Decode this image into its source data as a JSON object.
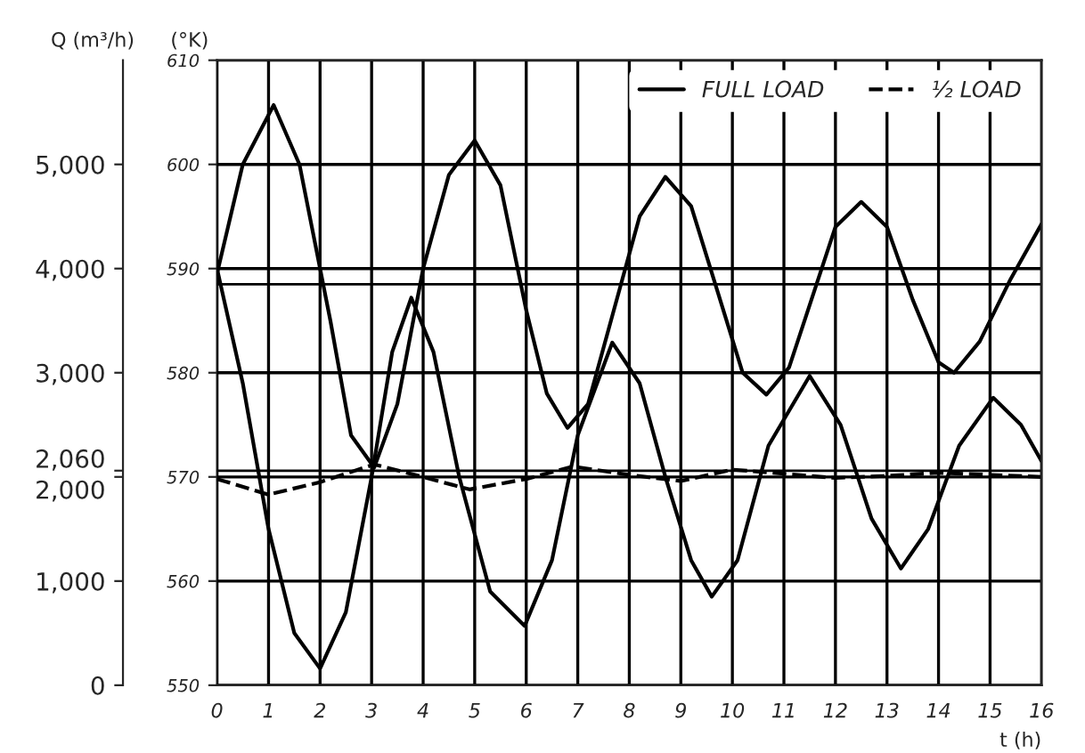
{
  "chart_data": {
    "type": "line",
    "xlabel": "t (h)",
    "ylabel": "Q (m³/h)",
    "y2label": "(°K)",
    "xlim": [
      0,
      16
    ],
    "xticks": [
      0,
      1,
      2,
      3,
      4,
      5,
      6,
      7,
      8,
      9,
      10,
      11,
      12,
      13,
      14,
      15,
      16
    ],
    "ylim": [
      0,
      6000
    ],
    "yticks": [
      0,
      {
        "value": 1000,
        "label": "1,000"
      },
      {
        "value": 2000,
        "label": "2,000"
      },
      {
        "value": 2060,
        "label": "2,060"
      },
      {
        "value": 3000,
        "label": "3,000"
      },
      {
        "value": 4000,
        "label": "4,000"
      },
      {
        "value": 5000,
        "label": "5,000"
      }
    ],
    "y2lim": [
      550,
      610
    ],
    "y2ticks": [
      550,
      560,
      570,
      580,
      590,
      600,
      610
    ],
    "grid": true,
    "legend": "top right",
    "ref_lines": [
      {
        "axis": "y",
        "value": 2060,
        "color": "#000000",
        "line_style": "solid"
      },
      {
        "axis": "y",
        "value": 3850,
        "color": "#000000",
        "line_style": "solid"
      }
    ],
    "series": [
      {
        "name": "FULL LOAD",
        "color": "#000000",
        "line_style": "solid",
        "x": [
          0,
          0.5,
          1.1,
          1.6,
          2.2,
          2.6,
          3.05,
          3.5,
          4,
          4.5,
          5.0,
          5.5,
          6.0,
          6.4,
          6.8,
          7.2,
          7.7,
          8.2,
          8.7,
          9.2,
          9.7,
          10.2,
          10.66,
          11.1,
          11.6,
          12.0,
          12.5,
          13.0,
          13.5,
          14.0,
          14.3,
          14.8,
          15.4,
          16
        ],
        "values": [
          3950,
          5000,
          5570,
          5000,
          3500,
          2400,
          2090,
          2700,
          4000,
          4900,
          5230,
          4800,
          3600,
          2800,
          2470,
          2700,
          3600,
          4500,
          4880,
          4600,
          3800,
          3000,
          2790,
          3050,
          3800,
          4400,
          4640,
          4400,
          3700,
          3100,
          3000,
          3300,
          3900,
          4430
        ]
      },
      {
        "color": "#000000",
        "line_style": "solid",
        "x": [
          0,
          0.5,
          1.0,
          1.5,
          2.0,
          2.5,
          3.0,
          3.4,
          3.77,
          4.2,
          4.7,
          5.3,
          5.97,
          6.5,
          7.0,
          7.67,
          8.2,
          8.7,
          9.2,
          9.6,
          10.1,
          10.7,
          11.5,
          12.1,
          12.7,
          13.27,
          13.8,
          14.4,
          15.06,
          15.6,
          16
        ],
        "values": [
          4000,
          2900,
          1500,
          500,
          160,
          700,
          2000,
          3200,
          3720,
          3200,
          2000,
          900,
          570,
          1200,
          2400,
          3290,
          2900,
          2000,
          1200,
          850,
          1200,
          2300,
          2970,
          2500,
          1600,
          1120,
          1500,
          2300,
          2760,
          2500,
          2150
        ]
      },
      {
        "name": "½ LOAD",
        "color": "#000000",
        "line_style": "dashed",
        "x": [
          0,
          1.0,
          2,
          3.05,
          4,
          4.9,
          6,
          6.9,
          8,
          9,
          10,
          11,
          12,
          13,
          14,
          15,
          16
        ],
        "values": [
          1980,
          1830,
          1950,
          2120,
          2000,
          1880,
          1980,
          2100,
          2020,
          1960,
          2070,
          2030,
          1990,
          2010,
          2040,
          2020,
          2000
        ]
      }
    ]
  }
}
